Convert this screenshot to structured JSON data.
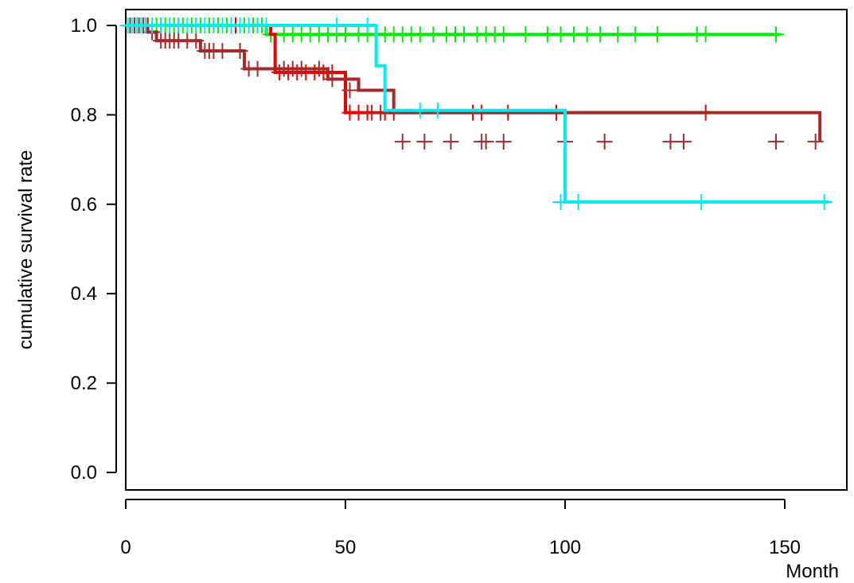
{
  "chart_data": {
    "type": "line",
    "step": true,
    "xlabel": "Month",
    "ylabel": "cumulative survival rate",
    "xlim": [
      0,
      160
    ],
    "ylim": [
      0,
      1.0
    ],
    "xticks": [
      0,
      50,
      100,
      150
    ],
    "yticks": [
      0.0,
      0.2,
      0.4,
      0.6,
      0.8,
      1.0
    ],
    "xtick_labels": [
      "0",
      "50",
      "100",
      "150"
    ],
    "ytick_labels": [
      "0.0",
      "0.2",
      "0.4",
      "0.6",
      "0.8",
      "1.0"
    ],
    "grid": false,
    "series": [
      {
        "color": "#00ee00",
        "x": [
          0,
          32,
          149
        ],
        "y": [
          1.0,
          0.98,
          0.98
        ],
        "censor_x": [
          1,
          3,
          5,
          7,
          9,
          11,
          13,
          15,
          17,
          19,
          21,
          23,
          25,
          27,
          29,
          31,
          33,
          36,
          38,
          40,
          42,
          44,
          46,
          48,
          50,
          53,
          55,
          57,
          59,
          61,
          63,
          65,
          67,
          70,
          73,
          75,
          77,
          80,
          82,
          84,
          86,
          91,
          96,
          99,
          102,
          105,
          108,
          112,
          116,
          121,
          130,
          132,
          148
        ],
        "censor_y": [
          1.0,
          1.0,
          1.0,
          1.0,
          1.0,
          1.0,
          1.0,
          1.0,
          1.0,
          1.0,
          1.0,
          1.0,
          1.0,
          1.0,
          1.0,
          1.0,
          0.98,
          0.98,
          0.98,
          0.98,
          0.98,
          0.98,
          0.98,
          0.98,
          0.98,
          0.98,
          0.98,
          0.98,
          0.98,
          0.98,
          0.98,
          0.98,
          0.98,
          0.98,
          0.98,
          0.98,
          0.98,
          0.98,
          0.98,
          0.98,
          0.98,
          0.98,
          0.98,
          0.98,
          0.98,
          0.98,
          0.98,
          0.98,
          0.98,
          0.98,
          0.98,
          0.98,
          0.98
        ]
      },
      {
        "color": "#ee0000",
        "x": [
          0,
          33,
          34,
          49,
          50,
          133
        ],
        "y": [
          1.0,
          0.98,
          0.895,
          0.895,
          0.805,
          0.805
        ],
        "censor_x": [
          2,
          5,
          8,
          12,
          16,
          20,
          25,
          30,
          35,
          37,
          39,
          41,
          43,
          45,
          47,
          51,
          53,
          55,
          59,
          61,
          79,
          81,
          87,
          98,
          132
        ],
        "censor_y": [
          1.0,
          1.0,
          1.0,
          1.0,
          1.0,
          1.0,
          1.0,
          1.0,
          0.895,
          0.895,
          0.895,
          0.895,
          0.895,
          0.895,
          0.895,
          0.805,
          0.805,
          0.805,
          0.805,
          0.805,
          0.805,
          0.805,
          0.805,
          0.805,
          0.805
        ]
      },
      {
        "color": "#a52a2a",
        "x": [
          0,
          5,
          7,
          17,
          27,
          46,
          53,
          61,
          158
        ],
        "y": [
          1.0,
          0.985,
          0.966,
          0.943,
          0.903,
          0.88,
          0.855,
          0.805,
          0.74
        ],
        "censor_x": [
          1,
          2,
          3,
          4,
          6,
          8,
          9,
          10,
          11,
          12,
          14,
          16,
          18,
          19,
          20,
          22,
          26,
          28,
          30,
          36,
          38,
          40,
          44,
          47,
          51,
          56,
          58,
          63,
          68,
          74,
          81,
          82,
          86,
          100,
          109,
          124,
          127,
          148,
          157
        ],
        "censor_y": [
          1.0,
          1.0,
          1.0,
          1.0,
          0.985,
          0.966,
          0.966,
          0.966,
          0.966,
          0.966,
          0.966,
          0.966,
          0.943,
          0.943,
          0.943,
          0.943,
          0.943,
          0.903,
          0.903,
          0.903,
          0.903,
          0.903,
          0.903,
          0.88,
          0.855,
          0.805,
          0.805,
          0.74,
          0.74,
          0.74,
          0.74,
          0.74,
          0.74,
          0.74,
          0.74,
          0.74,
          0.74,
          0.74,
          0.74
        ]
      },
      {
        "color": "#00eeee",
        "x": [
          0,
          57,
          58,
          59,
          98,
          100,
          160
        ],
        "y": [
          1.0,
          0.91,
          0.91,
          0.81,
          0.81,
          0.605,
          0.605
        ],
        "censor_x": [
          0.5,
          1.5,
          2.5,
          3.5,
          4.5,
          6,
          8,
          10,
          12,
          14,
          16,
          18,
          20,
          22,
          24,
          26,
          28,
          30,
          32,
          48,
          55,
          67,
          71,
          99,
          103,
          131,
          159
        ],
        "censor_y": [
          1.0,
          1.0,
          1.0,
          1.0,
          1.0,
          1.0,
          1.0,
          1.0,
          1.0,
          1.0,
          1.0,
          1.0,
          1.0,
          1.0,
          1.0,
          1.0,
          1.0,
          1.0,
          1.0,
          1.0,
          1.0,
          0.81,
          0.81,
          0.605,
          0.605,
          0.605,
          0.605
        ]
      }
    ]
  }
}
